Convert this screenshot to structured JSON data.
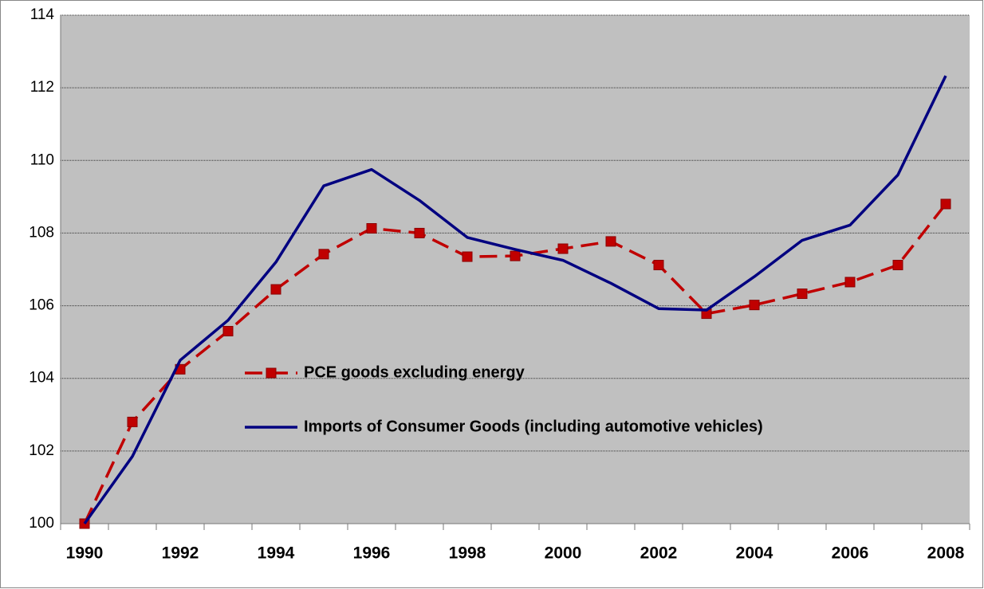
{
  "chart_data": {
    "type": "line",
    "categories": [
      "1990",
      null,
      "1992",
      null,
      "1994",
      null,
      "1996",
      null,
      "1998",
      null,
      "2000",
      null,
      "2002",
      null,
      "2004",
      null,
      "2006",
      null,
      "2008"
    ],
    "series": [
      {
        "name": "PCE goods excluding energy",
        "color": "#c00000",
        "dashed": true,
        "markers": true,
        "values": [
          100,
          102.8,
          104.25,
          105.3,
          106.45,
          107.42,
          108.13,
          108.0,
          107.35,
          107.37,
          107.57,
          107.77,
          107.12,
          105.78,
          106.02,
          106.33,
          106.65,
          107.12,
          108.8
        ]
      },
      {
        "name": "Imports of Consumer Goods (including automotive vehicles)",
        "color": "#000080",
        "dashed": false,
        "markers": false,
        "values": [
          100,
          101.85,
          104.5,
          105.6,
          107.2,
          109.3,
          109.75,
          108.9,
          107.88,
          107.55,
          107.25,
          106.62,
          105.92,
          105.88,
          106.8,
          107.8,
          108.22,
          109.6,
          112.33
        ]
      }
    ],
    "ylim": [
      100,
      114
    ],
    "yticks": [
      100,
      102,
      104,
      106,
      108,
      110,
      112,
      114
    ],
    "grid": true
  }
}
